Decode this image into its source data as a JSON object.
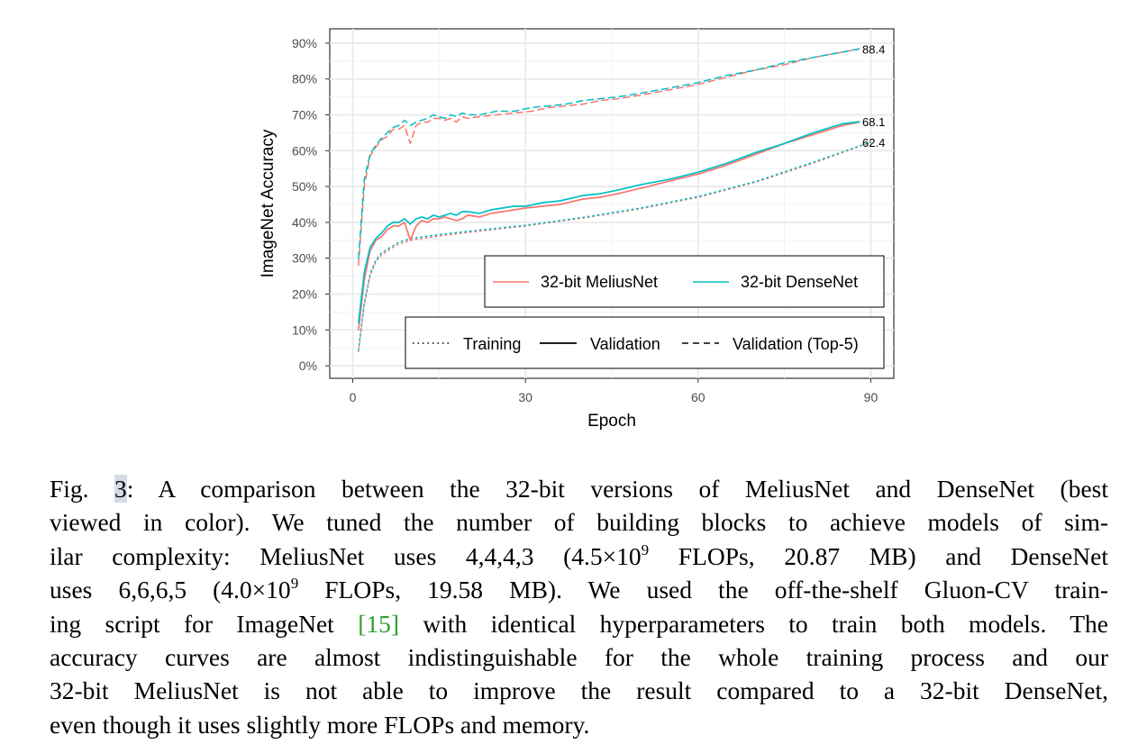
{
  "chart_data": {
    "type": "line",
    "xlabel": "Epoch",
    "ylabel": "ImageNet Accuracy",
    "xlim": [
      -4,
      94
    ],
    "ylim": [
      -3.5,
      94
    ],
    "x_ticks": [
      0,
      30,
      60,
      90
    ],
    "y_ticks": [
      0,
      10,
      20,
      30,
      40,
      50,
      60,
      70,
      80,
      90
    ],
    "y_tick_labels": [
      "0%",
      "10%",
      "20%",
      "30%",
      "40%",
      "50%",
      "60%",
      "70%",
      "80%",
      "90%"
    ],
    "grid": true,
    "colors": {
      "meliusnet": "#f8766d",
      "densenet": "#00bfc4"
    },
    "legend_model": {
      "title": "",
      "placement": "bottom-right",
      "entries": [
        {
          "label": "32-bit MeliusNet",
          "color": "#f8766d"
        },
        {
          "label": "32-bit DenseNet",
          "color": "#00bfc4"
        }
      ]
    },
    "legend_type": {
      "placement": "bottom-right",
      "entries": [
        {
          "label": "Training",
          "style": "dotted"
        },
        {
          "label": "Validation",
          "style": "solid"
        },
        {
          "label": "Validation (Top-5)",
          "style": "dashed"
        }
      ]
    },
    "end_labels": [
      {
        "text": "88.4",
        "x": 89,
        "y": 88.4
      },
      {
        "text": "68.1",
        "x": 89,
        "y": 68.1
      },
      {
        "text": "62.4",
        "x": 89,
        "y": 62.4
      }
    ],
    "series": [
      {
        "name": "32-bit MeliusNet",
        "metric": "Training",
        "style": "dotted",
        "color": "#f8766d",
        "x": [
          1,
          2,
          3,
          4,
          5,
          6,
          7,
          8,
          9,
          10,
          15,
          20,
          30,
          40,
          50,
          60,
          70,
          80,
          90
        ],
        "y": [
          4,
          17,
          25,
          29,
          31,
          32,
          33,
          34,
          34.5,
          35,
          36.2,
          37.2,
          39,
          41.2,
          43.8,
          47,
          51.2,
          56.5,
          62.4
        ]
      },
      {
        "name": "32-bit DenseNet",
        "metric": "Training",
        "style": "dotted",
        "color": "#00bfc4",
        "x": [
          1,
          2,
          3,
          4,
          5,
          6,
          7,
          8,
          9,
          10,
          15,
          20,
          30,
          40,
          50,
          60,
          70,
          80,
          90
        ],
        "y": [
          4.5,
          17.5,
          25.5,
          29.5,
          31.5,
          32.5,
          33.5,
          34.5,
          35,
          35.5,
          36.6,
          37.5,
          39.2,
          41.4,
          44,
          47.2,
          51.4,
          56.8,
          62.4
        ]
      },
      {
        "name": "32-bit MeliusNet",
        "metric": "Validation",
        "style": "solid",
        "color": "#f8766d",
        "x": [
          1,
          2,
          3,
          4,
          5,
          6,
          7,
          8,
          9,
          10,
          11,
          12,
          13,
          14,
          15,
          16,
          17,
          18,
          19,
          20,
          22,
          24,
          26,
          28,
          30,
          33,
          36,
          40,
          43,
          46,
          50,
          55,
          60,
          65,
          70,
          75,
          80,
          85,
          88
        ],
        "y": [
          10,
          24,
          32,
          35,
          36,
          38,
          39,
          39,
          40,
          35,
          39,
          40.5,
          40,
          41,
          41,
          41.5,
          41,
          40.5,
          41,
          42,
          41.5,
          42.5,
          43,
          43.5,
          44,
          44.5,
          45,
          46.5,
          47,
          48,
          49.5,
          51.5,
          53.5,
          56,
          59,
          62,
          64.5,
          67,
          68
        ]
      },
      {
        "name": "32-bit DenseNet",
        "metric": "Validation",
        "style": "solid",
        "color": "#00bfc4",
        "x": [
          1,
          2,
          3,
          4,
          5,
          6,
          7,
          8,
          9,
          10,
          11,
          12,
          13,
          14,
          15,
          16,
          17,
          18,
          19,
          20,
          22,
          24,
          26,
          28,
          30,
          33,
          36,
          40,
          43,
          46,
          50,
          55,
          60,
          65,
          70,
          75,
          80,
          85,
          88
        ],
        "y": [
          12,
          26,
          33,
          35.5,
          37,
          39,
          40,
          40,
          41,
          39.5,
          41,
          41.5,
          41,
          42,
          41.5,
          42,
          42.5,
          42,
          43,
          43,
          42.5,
          43.5,
          44,
          44.5,
          44.5,
          45.5,
          46,
          47.5,
          48,
          49,
          50.5,
          52,
          54,
          56.5,
          59.5,
          62,
          65,
          67.5,
          68.1
        ]
      },
      {
        "name": "32-bit MeliusNet",
        "metric": "Validation (Top-5)",
        "style": "dashed",
        "color": "#f8766d",
        "x": [
          1,
          2,
          3,
          4,
          5,
          6,
          7,
          8,
          9,
          10,
          11,
          12,
          13,
          14,
          15,
          16,
          17,
          18,
          19,
          20,
          22,
          25,
          28,
          31,
          34,
          37,
          40,
          43,
          46,
          50,
          55,
          60,
          65,
          70,
          75,
          80,
          85,
          88
        ],
        "y": [
          28,
          50,
          58.5,
          61,
          63,
          64,
          66,
          66,
          67,
          62,
          67,
          68,
          68,
          69,
          69,
          68.5,
          69,
          68,
          69.5,
          69,
          69.5,
          70,
          70.5,
          71,
          72,
          72.5,
          73,
          74,
          74.5,
          75.5,
          77,
          78.5,
          80.5,
          82.5,
          84,
          86,
          87.5,
          88.4
        ]
      },
      {
        "name": "32-bit DenseNet",
        "metric": "Validation (Top-5)",
        "style": "dashed",
        "color": "#00bfc4",
        "x": [
          1,
          2,
          3,
          4,
          5,
          6,
          7,
          8,
          9,
          10,
          11,
          12,
          13,
          14,
          15,
          16,
          17,
          18,
          19,
          20,
          22,
          25,
          28,
          31,
          34,
          37,
          40,
          43,
          46,
          50,
          55,
          60,
          65,
          70,
          75,
          80,
          85,
          88
        ],
        "y": [
          30,
          52,
          59,
          61.5,
          63.5,
          65,
          66.5,
          67,
          68.5,
          67,
          68,
          68.5,
          69,
          70,
          69.5,
          69,
          70,
          69.5,
          70.5,
          70,
          70,
          71,
          71,
          72,
          72.5,
          73,
          74,
          74.5,
          75,
          76,
          77.5,
          79,
          81,
          82.5,
          84.5,
          86,
          87.5,
          88.4
        ]
      }
    ]
  },
  "caption": {
    "lines": [
      [
        "Fig. ",
        "3",
        ": A comparison between the 32-bit versions of MeliusNet and DenseNet (best"
      ],
      [
        "viewed in color). We tuned the number of building blocks to achieve models of sim-"
      ],
      [
        "ilar complexity: MeliusNet uses 4,4,4,3 (4.5×10",
        "9",
        " FLOPs, 20.87 MB) and DenseNet"
      ],
      [
        "uses 6,6,6,5 (4.0×10",
        "9",
        " FLOPs, 19.58 MB). We used the off-the-shelf Gluon-CV train-"
      ],
      [
        "ing script for ImageNet ",
        "[15]",
        " with identical hyperparameters to train both models. The"
      ],
      [
        "accuracy curves are almost indistinguishable for the whole training process and our"
      ],
      [
        "32-bit MeliusNet is not able to improve the result compared to a 32-bit DenseNet,"
      ],
      [
        "even though it uses slightly more FLOPs and memory."
      ]
    ]
  }
}
